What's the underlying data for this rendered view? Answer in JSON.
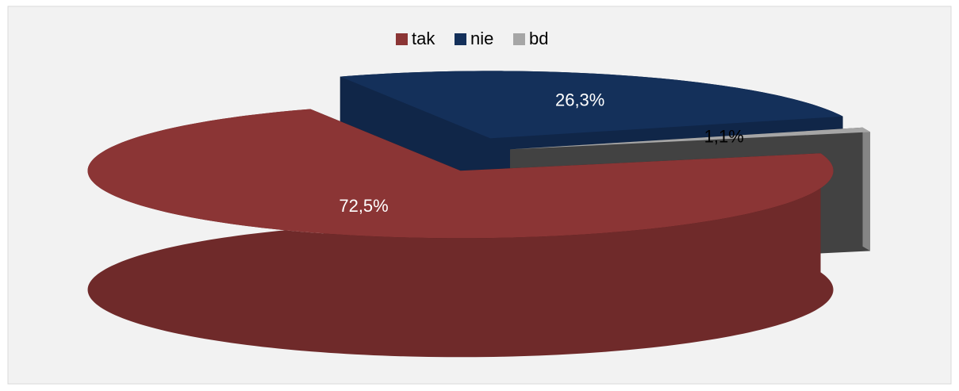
{
  "chart_data": {
    "type": "pie3d",
    "categories": [
      "tak",
      "nie",
      "bd"
    ],
    "values": [
      72.5,
      26.3,
      1.1
    ],
    "value_labels": [
      "72,5%",
      "26,3%",
      "1,1%"
    ],
    "colors": [
      "#8b3535",
      "#14305a",
      "#a6a6a6"
    ],
    "legend": "top"
  }
}
